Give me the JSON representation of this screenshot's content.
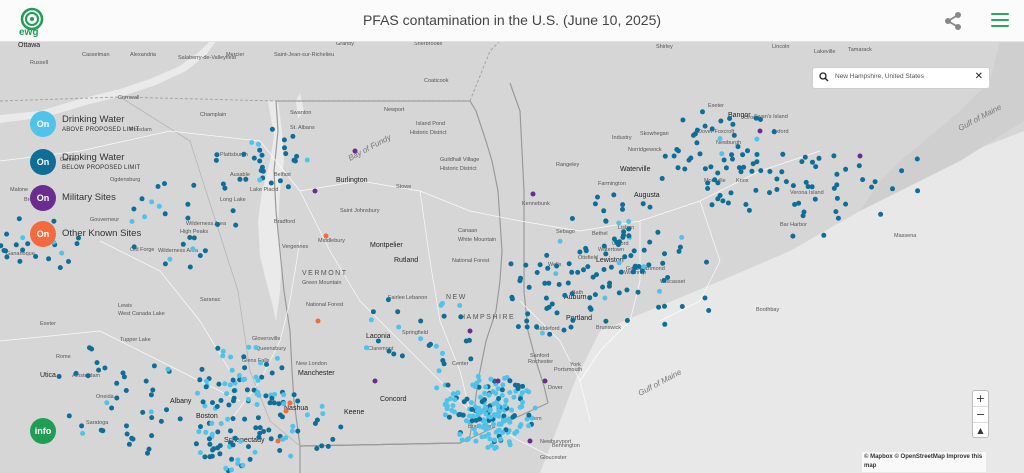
{
  "header": {
    "logo_text": "ewg",
    "title": "PFAS contamination in the U.S. (June 10, 2025)",
    "share_icon": "share-icon",
    "menu_icon": "hamburger-menu-icon"
  },
  "legend": {
    "items": [
      {
        "button": "On",
        "label": "Drinking Water",
        "sublabel": "ABOVE PROPOSED LIMIT",
        "color": "#4fc3ea"
      },
      {
        "button": "On",
        "label": "Drinking Water",
        "sublabel": "BELOW PROPOSED LIMIT",
        "color": "#0e6e97"
      },
      {
        "button": "On",
        "label": "Military Sites",
        "sublabel": "",
        "color": "#6b2c8f"
      },
      {
        "button": "On",
        "label": "Other Known Sites",
        "sublabel": "",
        "color": "#f26a3e"
      }
    ]
  },
  "search": {
    "value": "New Hampshire, United States",
    "clear": "✕"
  },
  "zoom": {
    "in": "+",
    "out": "−",
    "reset": "▲"
  },
  "info_button": "info",
  "attribution": {
    "mapbox": "© Mapbox",
    "osm": "© OpenStreetMap",
    "improve": "Improve this map"
  },
  "colors": {
    "above": "#4fc3ea",
    "below": "#0e6e97",
    "military": "#6b2c8f",
    "other": "#f26a3e",
    "accent": "#1f9d55"
  },
  "places": [
    "Ottawa",
    "Casselman",
    "Alexandria",
    "Salaberry-de-Valleyfield",
    "Mercier",
    "Saint-Jean-sur-Richelieu",
    "Granby",
    "Sherbrooke",
    "Shirley",
    "Lincoln",
    "Lakeville",
    "Tamarack",
    "Russell",
    "Cornwall",
    "Swanton",
    "St. Albans",
    "Newport",
    "Island Pond",
    "Historic District",
    "Coaticook",
    "Guildhall Village",
    "Historic District",
    "Rangeley",
    "Farmington",
    "Waterville",
    "Augusta",
    "Skowhegan",
    "Industry",
    "Norridgewock",
    "Dover-Foxcroft",
    "Exeter",
    "Bangor",
    "Newburgh",
    "Orono",
    "Oxford",
    "Montville",
    "Knox",
    "Verona Island",
    "Bar Harbor",
    "Swan's Island",
    "Belfast",
    "Burlington",
    "Stowe",
    "Saint Johnsbury",
    "Montpelier",
    "Bradford",
    "Vergennes",
    "Middlebury",
    "VERMONT",
    "Green Mountain",
    "National Forest",
    "Rutland",
    "Fairlee",
    "Lebanon",
    "Canaan",
    "White Mountain",
    "National Forest",
    "NEW",
    "HAMPSHIRE",
    "Laconia",
    "Claremont",
    "Springfield",
    "New London",
    "Manchester",
    "Center",
    "Concord",
    "Keene",
    "Brattleboro",
    "Nashua",
    "Bennington",
    "Salem",
    "Newburyport",
    "Gloucester",
    "Boston",
    "Schenectady",
    "Albany",
    "Amsterdam",
    "Utica",
    "Rome",
    "Oneida",
    "Gloversville",
    "Queensbury",
    "Glens Falls",
    "Saratoga",
    "Exeter",
    "Lewis",
    "West Canada Lake",
    "Wilderness Area",
    "High Peaks",
    "Wilderness Area",
    "Ausable",
    "Plattsburgh",
    "Champlain",
    "Malone",
    "Brockville",
    "Gananoque",
    "Watertown",
    "Lewiston",
    "Auburn",
    "Brunswick",
    "Bath",
    "Portland",
    "Biddeford",
    "Sanford",
    "Rochester",
    "Dover",
    "Portsmouth",
    "York",
    "Wells",
    "Kennebunk",
    "Sebago",
    "Bethel",
    "Otisfield",
    "Oxford",
    "Lisbon",
    "Winthrop",
    "Gardiner",
    "Richmond",
    "Wiscasset",
    "Boothbay",
    "Gulf of Maine",
    "Gulf of Maine",
    "Bay of Fundy",
    "Long Lake",
    "Lake Placid",
    "Saranac",
    "Tupper Lake",
    "Old Forge",
    "Gouverneur",
    "Ogdensburg",
    "Canton",
    "Potsdam",
    "Massena"
  ],
  "point_counts": {
    "above": "many",
    "below": "many"
  }
}
